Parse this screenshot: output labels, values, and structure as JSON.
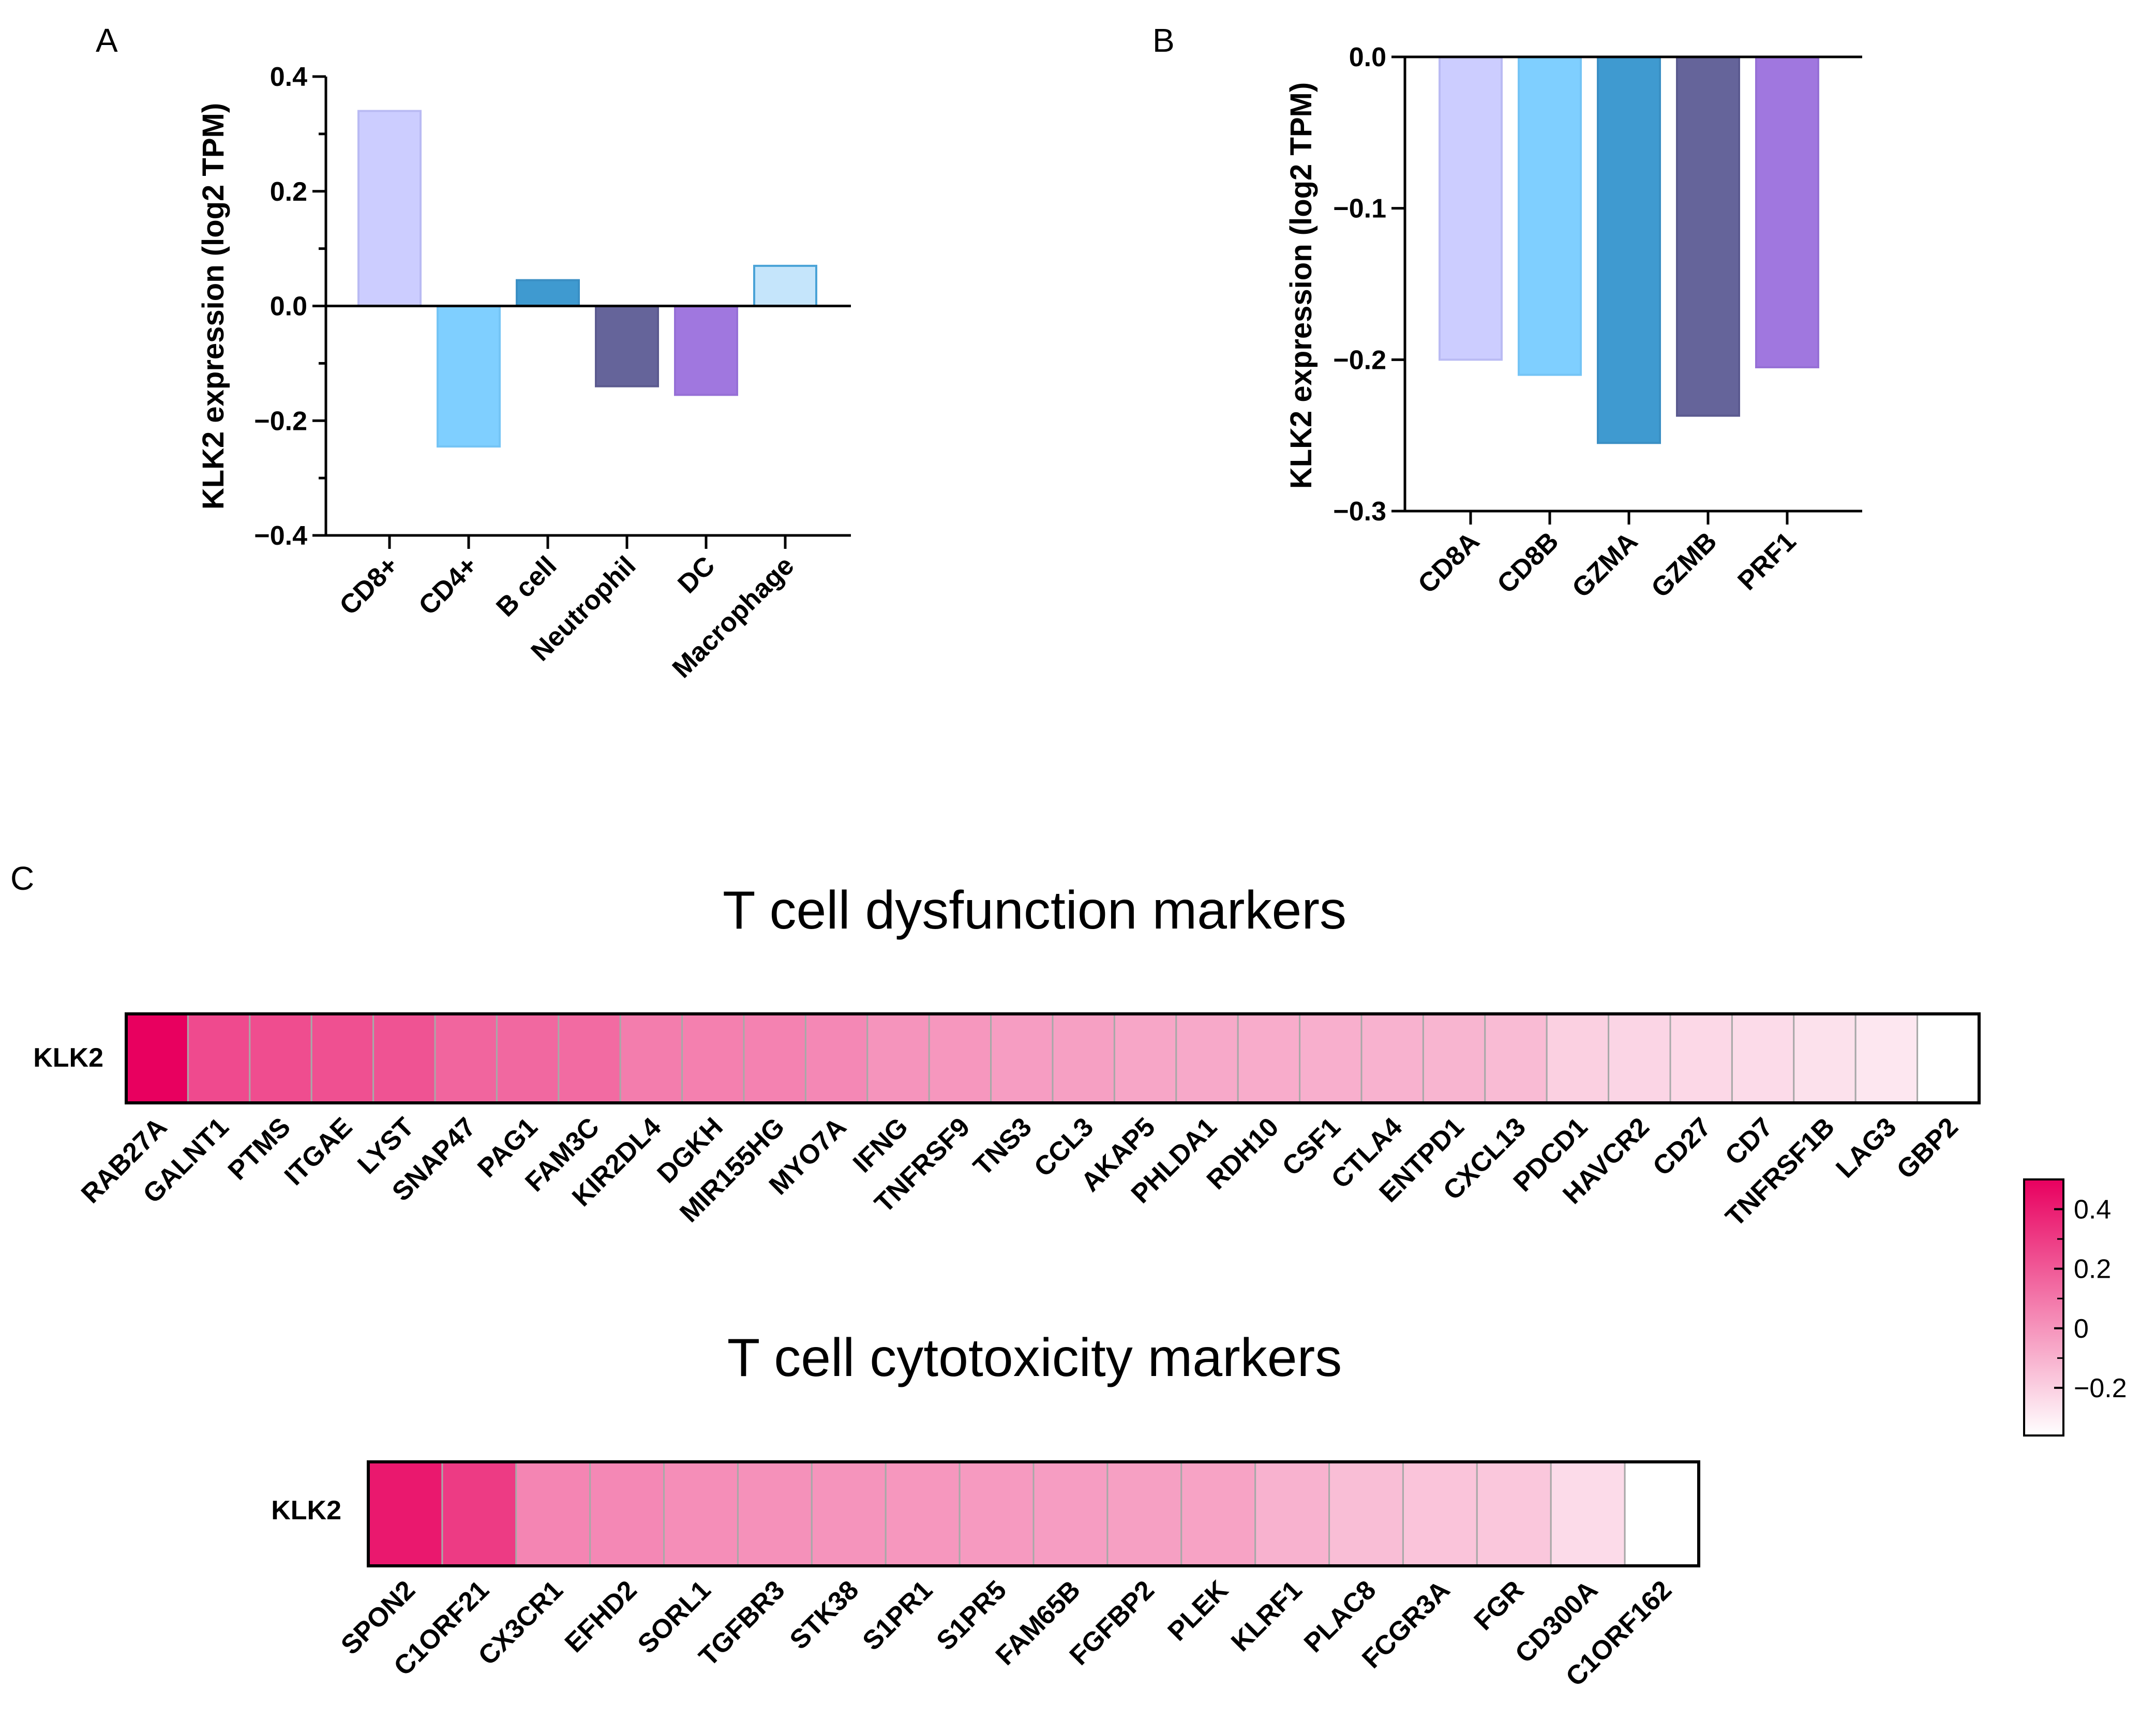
{
  "panels": {
    "a_letter": "A",
    "b_letter": "B",
    "c_letter": "C"
  },
  "chart_data": [
    {
      "type": "bar",
      "id": "A",
      "categories": [
        "CD8+",
        "CD4+",
        "B cell",
        "Neutrophil",
        "DC",
        "Macrophage"
      ],
      "values": [
        0.34,
        -0.245,
        0.045,
        -0.14,
        -0.155,
        0.07
      ],
      "colors": [
        "#cccdff",
        "#7fcfff",
        "#3f9ad0",
        "#65649a",
        "#a077df",
        "#c5e5fb"
      ],
      "strokes": [
        "#b9baf3",
        "#74c4f5",
        "#3a8fc4",
        "#5b5a8f",
        "#9670d6",
        "#4aa3d7"
      ],
      "title": "",
      "xlabel": "",
      "ylabel": "KLK2 expression (log2 TPM)",
      "ylim": [
        -0.4,
        0.4
      ],
      "yticks": [
        0.4,
        0.2,
        0.0,
        -0.2,
        -0.4
      ],
      "ytick_labels": [
        "0.4",
        "0.2",
        "0.0",
        "−0.2",
        "−0.4"
      ]
    },
    {
      "type": "bar",
      "id": "B",
      "categories": [
        "CD8A",
        "CD8B",
        "GZMA",
        "GZMB",
        "PRF1"
      ],
      "values": [
        -0.2,
        -0.21,
        -0.255,
        -0.237,
        -0.205
      ],
      "colors": [
        "#cccdff",
        "#7fcfff",
        "#3f9ad0",
        "#65649a",
        "#a077df"
      ],
      "strokes": [
        "#b9baf3",
        "#74c4f5",
        "#3a8fc4",
        "#5b5a8f",
        "#9670d6"
      ],
      "title": "",
      "xlabel": "",
      "ylabel": "KLK2 expression (log2 TPM)",
      "ylim": [
        -0.3,
        0.0
      ],
      "yticks": [
        0.0,
        -0.1,
        -0.2,
        -0.3
      ],
      "ytick_labels": [
        "0.0",
        "−0.1",
        "−0.2",
        "−0.3"
      ]
    },
    {
      "type": "heatmap",
      "id": "C-dysfunction",
      "title": "T cell dysfunction markers",
      "row_label": "KLK2",
      "columns": [
        "RAB27A",
        "GALNT1",
        "PTMS",
        "ITGAE",
        "LYST",
        "SNAP47",
        "PAG1",
        "FAM3C",
        "KIR2DL4",
        "DGKH",
        "MIR155HG",
        "MYO7A",
        "IFNG",
        "TNFRSF9",
        "TNS3",
        "CCL3",
        "AKAP5",
        "PHLDA1",
        "RDH10",
        "CSF1",
        "CTLA4",
        "ENTPD1",
        "CXCL13",
        "PDCD1",
        "HAVCR2",
        "CD27",
        "CD7",
        "TNFRSF1B",
        "LAG3",
        "GBP2"
      ],
      "values": [
        0.5,
        0.25,
        0.24,
        0.23,
        0.22,
        0.16,
        0.15,
        0.14,
        0.08,
        0.07,
        0.06,
        0.04,
        0.0,
        -0.01,
        -0.03,
        -0.04,
        -0.06,
        -0.07,
        -0.08,
        -0.09,
        -0.1,
        -0.11,
        -0.13,
        -0.2,
        -0.22,
        -0.23,
        -0.24,
        -0.26,
        -0.28,
        -0.36
      ]
    },
    {
      "type": "heatmap",
      "id": "C-cytotoxicity",
      "title": "T cell cytotoxicity markers",
      "row_label": "KLK2",
      "columns": [
        "SPON2",
        "C1ORF21",
        "CX3CR1",
        "EFHD2",
        "SORL1",
        "TGFBR3",
        "STK38",
        "S1PR1",
        "S1PR5",
        "FAM65B",
        "FGFBP2",
        "PLEK",
        "KLRF1",
        "PLAC8",
        "FCGR3A",
        "FGR",
        "CD300A",
        "C1ORF162"
      ],
      "values": [
        0.42,
        0.3,
        0.05,
        0.04,
        0.02,
        0.01,
        0.0,
        -0.01,
        -0.02,
        -0.03,
        -0.04,
        -0.05,
        -0.1,
        -0.14,
        -0.16,
        -0.17,
        -0.24,
        -0.36
      ]
    }
  ],
  "colorbar": {
    "min": -0.36,
    "max": 0.5,
    "ticks": [
      0.4,
      0.2,
      0,
      -0.2
    ],
    "tick_labels": [
      "0.4",
      "0.2",
      "0",
      "−0.2"
    ],
    "low_color": "#ffffff",
    "high_color": "#e8005f"
  }
}
